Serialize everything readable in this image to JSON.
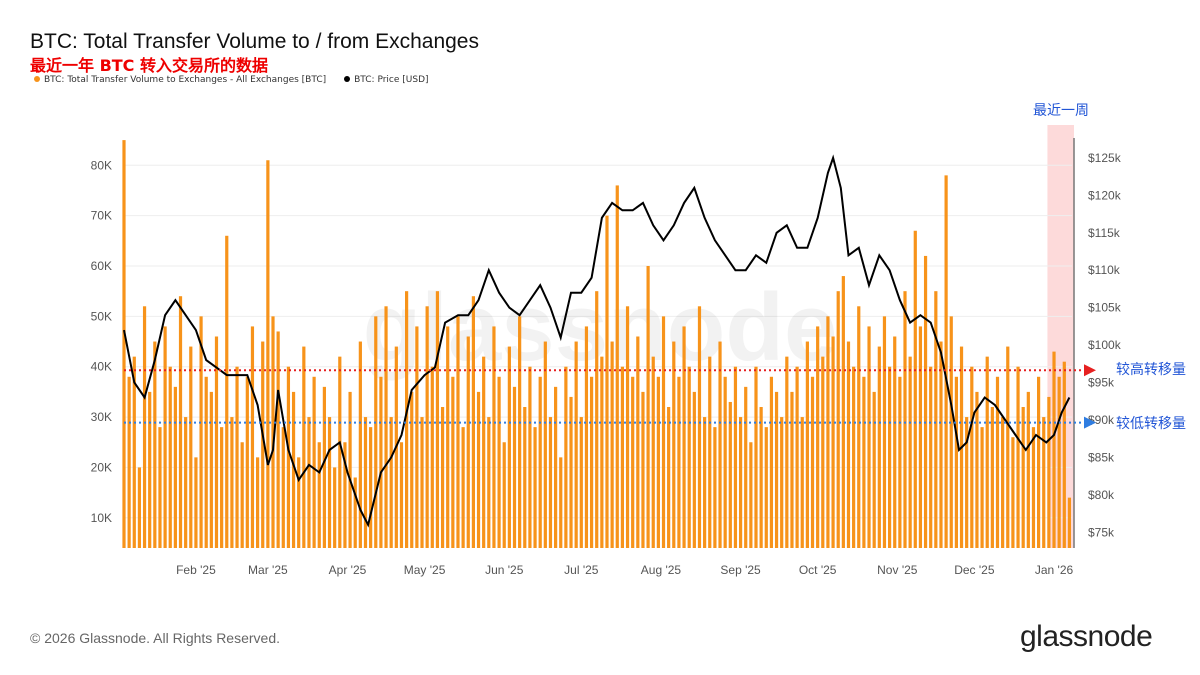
{
  "header": {
    "title": "BTC: Total Transfer Volume to / from Exchanges",
    "subtitle": "最近一年 BTC 转入交易所的数据"
  },
  "footer": {
    "copyright": "© 2026 Glassnode. All Rights Reserved.",
    "logo": "glassnode"
  },
  "annotations": {
    "last_week": "最近一周",
    "high_volume": "较高转移量",
    "low_volume": "较低转移量"
  },
  "colors": {
    "bars": "#f7931a",
    "price": "#000000",
    "high_line": "#e62020",
    "low_line": "#2f7de1",
    "week_shade": "#fddada"
  },
  "chart_data": {
    "type": "bar+line",
    "title": "BTC: Total Transfer Volume to / from Exchanges",
    "legend": [
      {
        "label": "BTC: Total Transfer Volume to Exchanges - All Exchanges [BTC]",
        "color": "#f7931a"
      },
      {
        "label": "BTC: Price [USD]",
        "color": "#000000"
      }
    ],
    "legend_placement": "top-left",
    "x_start_date": "2025-01-04",
    "x_days": 369,
    "x_ticks": [
      {
        "label": "Feb '25",
        "day": 28
      },
      {
        "label": "Mar '25",
        "day": 56
      },
      {
        "label": "Apr '25",
        "day": 87
      },
      {
        "label": "May '25",
        "day": 117
      },
      {
        "label": "Jun '25",
        "day": 148
      },
      {
        "label": "Jul '25",
        "day": 178
      },
      {
        "label": "Aug '25",
        "day": 209
      },
      {
        "label": "Sep '25",
        "day": 240
      },
      {
        "label": "Oct '25",
        "day": 270
      },
      {
        "label": "Nov '25",
        "day": 301
      },
      {
        "label": "Dec '25",
        "day": 331
      },
      {
        "label": "Jan '26",
        "day": 362
      }
    ],
    "y_left": {
      "unit": "K BTC",
      "ylim": [
        4,
        88
      ],
      "ticks": [
        10,
        20,
        30,
        40,
        50,
        60,
        70,
        80
      ],
      "tick_labels": [
        "10K",
        "20K",
        "30K",
        "40K",
        "50K",
        "60K",
        "70K",
        "80K"
      ]
    },
    "y_right": {
      "unit": "k USD",
      "ylim": [
        72.9,
        129.4
      ],
      "ticks": [
        75,
        80,
        85,
        90,
        95,
        100,
        105,
        110,
        115,
        120,
        125
      ],
      "tick_labels": [
        "$75k",
        "$80k",
        "$85k",
        "$90k",
        "$95k",
        "$100k",
        "$105k",
        "$110k",
        "$115k",
        "$120k",
        "$125k"
      ]
    },
    "bar_step_days": 2,
    "volume_k": [
      85,
      38,
      42,
      20,
      52,
      35,
      45,
      28,
      48,
      40,
      36,
      54,
      30,
      44,
      22,
      50,
      38,
      35,
      46,
      28,
      66,
      30,
      40,
      25,
      38,
      48,
      22,
      45,
      81,
      50,
      47,
      28,
      40,
      35,
      22,
      44,
      30,
      38,
      25,
      36,
      30,
      20,
      42,
      25,
      35,
      18,
      45,
      30,
      28,
      50,
      38,
      52,
      30,
      44,
      25,
      55,
      35,
      48,
      30,
      52,
      40,
      55,
      32,
      48,
      38,
      50,
      28,
      46,
      54,
      35,
      42,
      30,
      48,
      38,
      25,
      44,
      36,
      50,
      32,
      40,
      28,
      38,
      45,
      30,
      36,
      22,
      40,
      34,
      45,
      30,
      48,
      38,
      55,
      42,
      70,
      45,
      76,
      40,
      52,
      38,
      46,
      35,
      60,
      42,
      38,
      50,
      32,
      45,
      38,
      48,
      40,
      35,
      52,
      30,
      42,
      28,
      45,
      38,
      33,
      40,
      30,
      36,
      25,
      40,
      32,
      28,
      38,
      35,
      30,
      42,
      35,
      40,
      30,
      45,
      38,
      48,
      42,
      50,
      46,
      55,
      58,
      45,
      40,
      52,
      38,
      48,
      35,
      44,
      50,
      40,
      46,
      38,
      55,
      42,
      67,
      48,
      62,
      40,
      55,
      45,
      78,
      50,
      38,
      44,
      30,
      40,
      35,
      28,
      42,
      32,
      38,
      30,
      44,
      26,
      40,
      32,
      35,
      28,
      38,
      30,
      34,
      43,
      38,
      41,
      14
    ],
    "price_k": [
      [
        0,
        102
      ],
      [
        4,
        95
      ],
      [
        8,
        93
      ],
      [
        12,
        98
      ],
      [
        16,
        104
      ],
      [
        20,
        106
      ],
      [
        24,
        104
      ],
      [
        28,
        102
      ],
      [
        32,
        98
      ],
      [
        36,
        97
      ],
      [
        40,
        96
      ],
      [
        44,
        96
      ],
      [
        48,
        96
      ],
      [
        52,
        92
      ],
      [
        56,
        84
      ],
      [
        58,
        86
      ],
      [
        60,
        94
      ],
      [
        64,
        86
      ],
      [
        68,
        82
      ],
      [
        72,
        84
      ],
      [
        76,
        83
      ],
      [
        80,
        86
      ],
      [
        84,
        87
      ],
      [
        87,
        83
      ],
      [
        92,
        78
      ],
      [
        95,
        76
      ],
      [
        100,
        83
      ],
      [
        104,
        85
      ],
      [
        108,
        88
      ],
      [
        112,
        94
      ],
      [
        117,
        96
      ],
      [
        121,
        97
      ],
      [
        125,
        103
      ],
      [
        130,
        104
      ],
      [
        134,
        104
      ],
      [
        138,
        106
      ],
      [
        142,
        110
      ],
      [
        146,
        107
      ],
      [
        150,
        105
      ],
      [
        154,
        104
      ],
      [
        158,
        106
      ],
      [
        162,
        108
      ],
      [
        166,
        105
      ],
      [
        170,
        101
      ],
      [
        174,
        107
      ],
      [
        178,
        107
      ],
      [
        182,
        109
      ],
      [
        186,
        117
      ],
      [
        190,
        119
      ],
      [
        194,
        118
      ],
      [
        198,
        118
      ],
      [
        202,
        119
      ],
      [
        206,
        116
      ],
      [
        210,
        114
      ],
      [
        214,
        116
      ],
      [
        218,
        119
      ],
      [
        222,
        121
      ],
      [
        226,
        117
      ],
      [
        230,
        114
      ],
      [
        234,
        112
      ],
      [
        238,
        110
      ],
      [
        242,
        110
      ],
      [
        246,
        112
      ],
      [
        250,
        111
      ],
      [
        254,
        115
      ],
      [
        258,
        116
      ],
      [
        262,
        113
      ],
      [
        266,
        113
      ],
      [
        270,
        117
      ],
      [
        274,
        123
      ],
      [
        276,
        125
      ],
      [
        279,
        121
      ],
      [
        282,
        112
      ],
      [
        286,
        113
      ],
      [
        290,
        108
      ],
      [
        294,
        112
      ],
      [
        298,
        110
      ],
      [
        302,
        106
      ],
      [
        306,
        103
      ],
      [
        310,
        104
      ],
      [
        314,
        103
      ],
      [
        318,
        99
      ],
      [
        322,
        92
      ],
      [
        325,
        86
      ],
      [
        328,
        87
      ],
      [
        331,
        91
      ],
      [
        335,
        93
      ],
      [
        339,
        92
      ],
      [
        343,
        90
      ],
      [
        347,
        88
      ],
      [
        351,
        86
      ],
      [
        355,
        88
      ],
      [
        359,
        87
      ],
      [
        362,
        88
      ],
      [
        365,
        91
      ],
      [
        368,
        93
      ]
    ],
    "reference_lines": [
      {
        "label": "较高转移量",
        "value_k": 39.3,
        "color": "#e62020"
      },
      {
        "label": "较低转移量",
        "value_k": 28.9,
        "color": "#2f7de1"
      }
    ],
    "highlight": {
      "label": "最近一周",
      "from_day": 361,
      "to_day": 369
    },
    "grid": true
  }
}
